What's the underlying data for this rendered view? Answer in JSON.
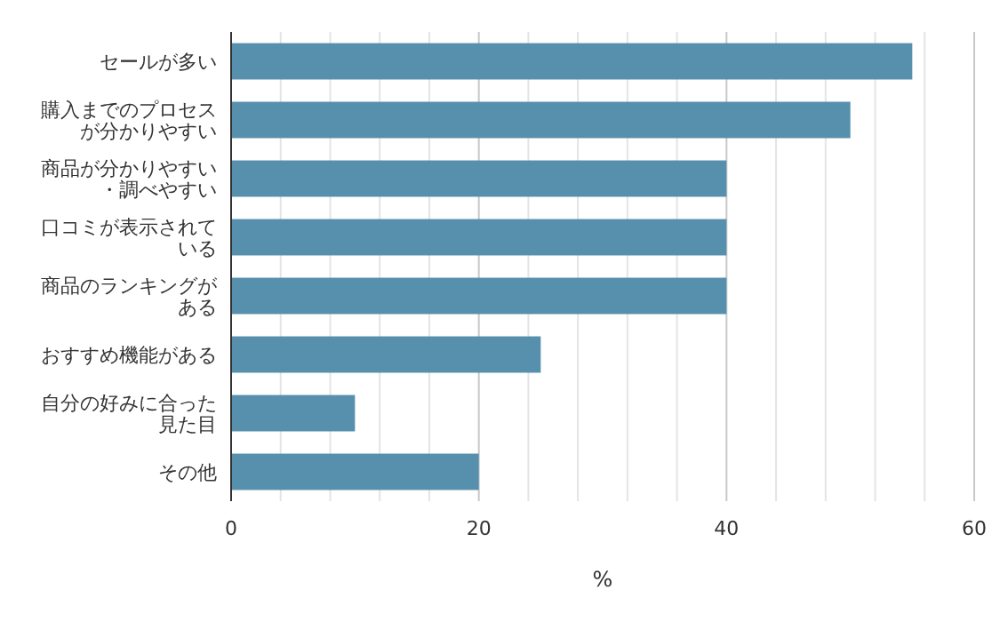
{
  "chart_data": {
    "type": "bar",
    "orientation": "horizontal",
    "xlabel": "%",
    "categories": [
      "セールが多い",
      "購入までのプロセスが分かりやすい",
      "商品が分かりやすい・調べやすい",
      "口コミが表示されている",
      "商品のランキングがある",
      "おすすめ機能がある",
      "自分の好みに合った見た目",
      "その他"
    ],
    "values": [
      55,
      50,
      40,
      40,
      40,
      25,
      10,
      20
    ],
    "color": "#5690ad",
    "xlim": [
      0,
      60
    ],
    "xticks": [
      0,
      {
        "value": 4,
        "label": null
      },
      {
        "value": 8,
        "label": null
      },
      {
        "value": 12,
        "label": null
      },
      {
        "value": 16,
        "label": null
      },
      20,
      {
        "value": 24,
        "label": null
      },
      {
        "value": 28,
        "label": null
      },
      {
        "value": 32,
        "label": null
      },
      {
        "value": 36,
        "label": null
      },
      40,
      {
        "value": 44,
        "label": null
      },
      {
        "value": 48,
        "label": null
      },
      {
        "value": 52,
        "label": null
      },
      {
        "value": 56,
        "label": null
      },
      60
    ],
    "grid": "x"
  }
}
